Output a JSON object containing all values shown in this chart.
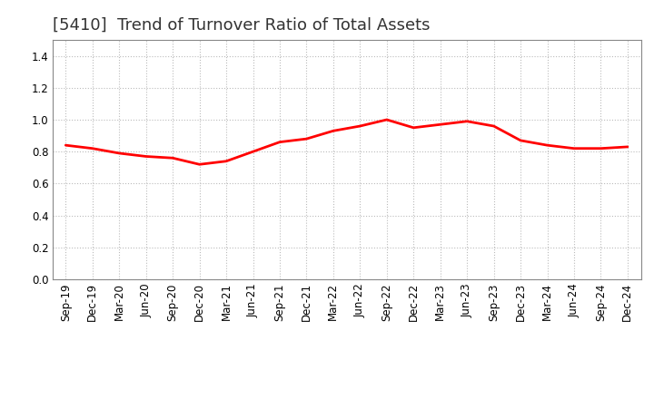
{
  "title": "[5410]  Trend of Turnover Ratio of Total Assets",
  "x_labels": [
    "Sep-19",
    "Dec-19",
    "Mar-20",
    "Jun-20",
    "Sep-20",
    "Dec-20",
    "Mar-21",
    "Jun-21",
    "Sep-21",
    "Dec-21",
    "Mar-22",
    "Jun-22",
    "Sep-22",
    "Dec-22",
    "Mar-23",
    "Jun-23",
    "Sep-23",
    "Dec-23",
    "Mar-24",
    "Jun-24",
    "Sep-24",
    "Dec-24"
  ],
  "y_values": [
    0.84,
    0.82,
    0.79,
    0.77,
    0.76,
    0.72,
    0.74,
    0.8,
    0.86,
    0.88,
    0.93,
    0.96,
    1.0,
    0.95,
    0.97,
    0.99,
    0.96,
    0.87,
    0.84,
    0.82,
    0.82,
    0.83
  ],
  "line_color": "#ff0000",
  "line_width": 2.0,
  "ylim": [
    0.0,
    1.5
  ],
  "yticks": [
    0.0,
    0.2,
    0.4,
    0.6,
    0.8,
    1.0,
    1.2,
    1.4
  ],
  "grid_color": "#bbbbbb",
  "title_fontsize": 13,
  "tick_fontsize": 8.5,
  "bg_color": "#ffffff",
  "plot_bg_color": "#ffffff"
}
